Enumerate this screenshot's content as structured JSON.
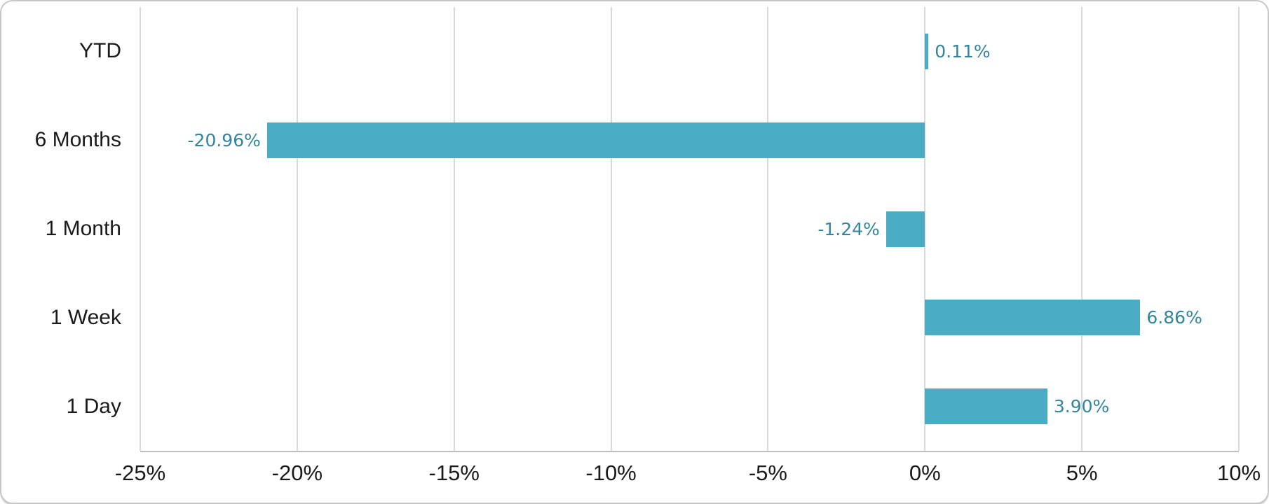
{
  "chart_data": {
    "type": "bar",
    "orientation": "horizontal",
    "title": "",
    "xlabel": "",
    "ylabel": "",
    "categories": [
      "YTD",
      "6 Months",
      "1 Month",
      "1 Week",
      "1 Day"
    ],
    "values": [
      0.11,
      -20.96,
      -1.24,
      6.86,
      3.9
    ],
    "data_labels": [
      "0.11%",
      "-20.96%",
      "-1.24%",
      "6.86%",
      "3.90%"
    ],
    "x_ticks": [
      -25,
      -20,
      -15,
      -10,
      -5,
      0,
      5,
      10
    ],
    "x_tick_labels": [
      "-25%",
      "-20%",
      "-15%",
      "-10%",
      "-5%",
      "0%",
      "5%",
      "10%"
    ],
    "xlim": [
      -25,
      10
    ],
    "grid": "vertical-only",
    "legend": "none",
    "colors": {
      "bar_fill": "#4AABC5",
      "data_label": "#31859C",
      "gridline": "#D9D9D9",
      "axis_line": "#BFBFBF",
      "text": "#1A1A1A",
      "card_border": "#C7C7C7",
      "background": "#FFFFFF"
    }
  }
}
